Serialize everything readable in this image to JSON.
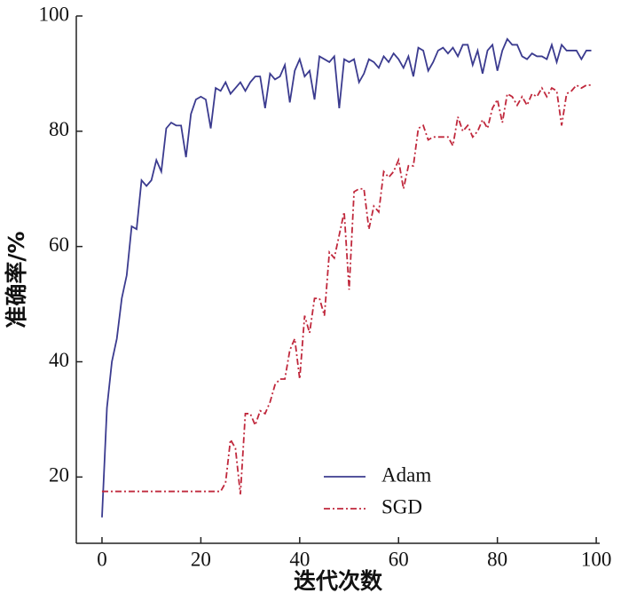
{
  "chart_data": {
    "type": "line",
    "xlabel": "迭代次数",
    "ylabel": "准确率/%",
    "x": [
      0,
      1,
      2,
      3,
      4,
      5,
      6,
      7,
      8,
      9,
      10,
      11,
      12,
      13,
      14,
      15,
      16,
      17,
      18,
      19,
      20,
      21,
      22,
      23,
      24,
      25,
      26,
      27,
      28,
      29,
      30,
      31,
      32,
      33,
      34,
      35,
      36,
      37,
      38,
      39,
      40,
      41,
      42,
      43,
      44,
      45,
      46,
      47,
      48,
      49,
      50,
      51,
      52,
      53,
      54,
      55,
      56,
      57,
      58,
      59,
      60,
      61,
      62,
      63,
      64,
      65,
      66,
      67,
      68,
      69,
      70,
      71,
      72,
      73,
      74,
      75,
      76,
      77,
      78,
      79,
      80,
      81,
      82,
      83,
      84,
      85,
      86,
      87,
      88,
      89,
      90,
      91,
      92,
      93,
      94,
      95,
      96,
      97,
      98,
      99
    ],
    "series": [
      {
        "name": "Adam",
        "color": "#3b3b8f",
        "dash": "none",
        "values": [
          13,
          32,
          40,
          44,
          51,
          55,
          63.5,
          63,
          71.5,
          70.5,
          71.5,
          75,
          73,
          80.5,
          81.5,
          81,
          81,
          75.5,
          83,
          85.5,
          86,
          85.5,
          80.5,
          87.5,
          87,
          88.5,
          86.5,
          87.5,
          88.5,
          87,
          88.5,
          89.5,
          89.5,
          84,
          90,
          89,
          89.5,
          91.5,
          85,
          90.5,
          92.5,
          89.5,
          90.5,
          85.5,
          93,
          92.5,
          92,
          93,
          84,
          92.5,
          92,
          92.5,
          88.5,
          90,
          92.5,
          92,
          91,
          93,
          92,
          93.5,
          92.5,
          91,
          93,
          89.5,
          94.5,
          94,
          90.5,
          92,
          94,
          94.5,
          93.5,
          94.5,
          93,
          95,
          95,
          91.5,
          94,
          90,
          94,
          95,
          90.5,
          94,
          96,
          95,
          95,
          93,
          92.5,
          93.5,
          93,
          93,
          92.5,
          95,
          92,
          95,
          94,
          94,
          94,
          92.5,
          94,
          94
        ]
      },
      {
        "name": "SGD",
        "color": "#c0283c",
        "dash": "7 3 2 3",
        "values": [
          17.5,
          17.5,
          17.5,
          17.5,
          17.5,
          17.5,
          17.5,
          17.5,
          17.5,
          17.5,
          17.5,
          17.5,
          17.5,
          17.5,
          17.5,
          17.5,
          17.5,
          17.5,
          17.5,
          17.5,
          17.5,
          17.5,
          17.5,
          17.5,
          17.5,
          19,
          26.5,
          25,
          17,
          31,
          31,
          29,
          31.5,
          31,
          33,
          36,
          37,
          37,
          42,
          44,
          37,
          48,
          45,
          51,
          51,
          48,
          59,
          58,
          62,
          66,
          52.5,
          69.5,
          70,
          70,
          63,
          67,
          66,
          73,
          72,
          73,
          75,
          70,
          74,
          74,
          80.5,
          81,
          78.5,
          79,
          79,
          79,
          79,
          77.5,
          82.5,
          80,
          81,
          79,
          80,
          82,
          80.5,
          84,
          85.5,
          81.5,
          86.5,
          86,
          84.5,
          86,
          84.5,
          86.5,
          86,
          87.5,
          86,
          87.5,
          87,
          81,
          86.5,
          87,
          88,
          87.5,
          88,
          88
        ]
      }
    ],
    "xlim": [
      -5.2,
      100.7
    ],
    "xticks": [
      0,
      20,
      40,
      60,
      80,
      100
    ],
    "ylim": [
      8.5,
      100
    ],
    "yticks": [
      20,
      40,
      60,
      80,
      100
    ],
    "grid": false
  }
}
